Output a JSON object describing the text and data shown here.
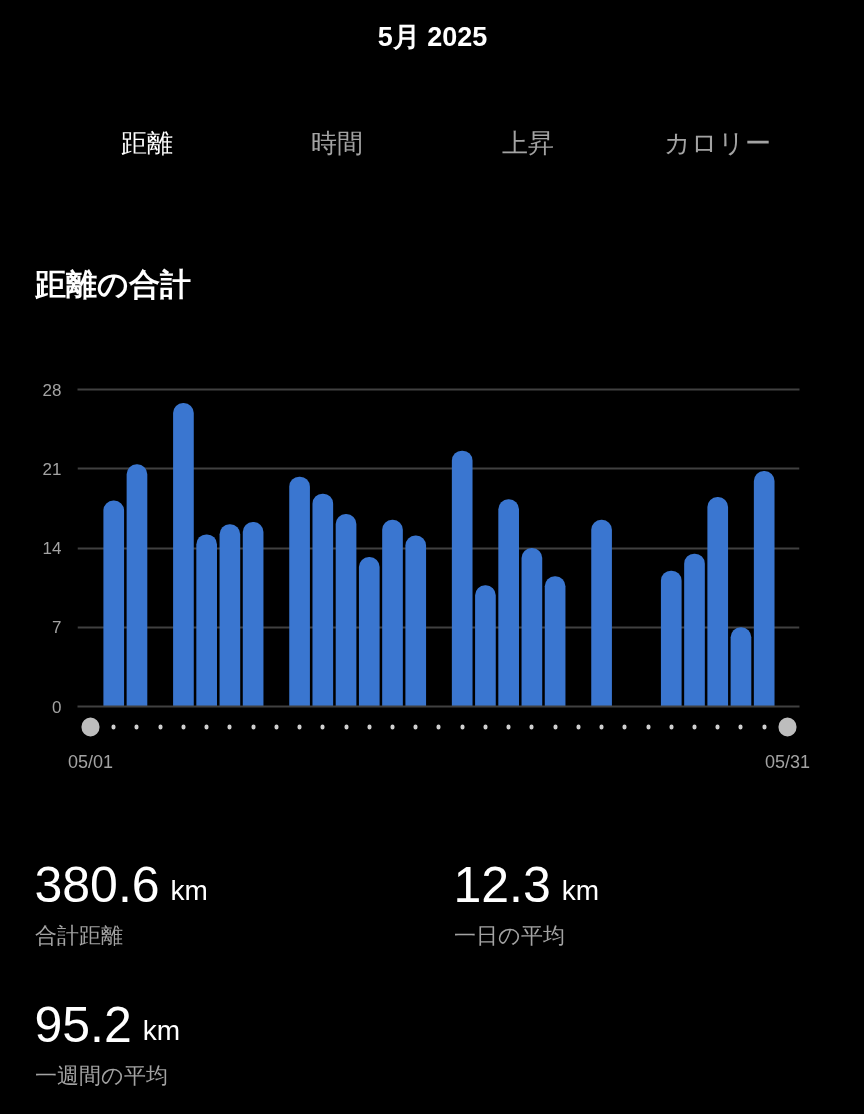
{
  "chart_data": {
    "type": "bar",
    "title": "距離の合計",
    "categories": [
      "05/01",
      null,
      null,
      null,
      null,
      null,
      null,
      null,
      null,
      null,
      null,
      null,
      null,
      null,
      null,
      null,
      null,
      null,
      null,
      null,
      null,
      null,
      null,
      null,
      null,
      null,
      null,
      null,
      null,
      null,
      "05/31"
    ],
    "values": [
      null,
      18.2,
      21.4,
      null,
      26.8,
      15.2,
      16.1,
      16.3,
      null,
      20.3,
      18.8,
      17.0,
      13.2,
      16.5,
      15.1,
      null,
      22.6,
      10.7,
      18.3,
      14.0,
      11.5,
      null,
      16.5,
      null,
      null,
      12.0,
      13.5,
      18.5,
      7.0,
      20.8,
      null
    ],
    "color": "#3a76d0",
    "ylim": [
      0,
      28
    ],
    "yticks": [
      0,
      7,
      14,
      21,
      28
    ],
    "grid": "y",
    "annotations": [
      "5月 2025",
      "距離",
      "時間",
      "上昇",
      "カロリー",
      "380.6 km",
      "合計距離",
      "12.3 km",
      "一日の平均",
      "95.2 km",
      "一週間の平均"
    ]
  }
}
